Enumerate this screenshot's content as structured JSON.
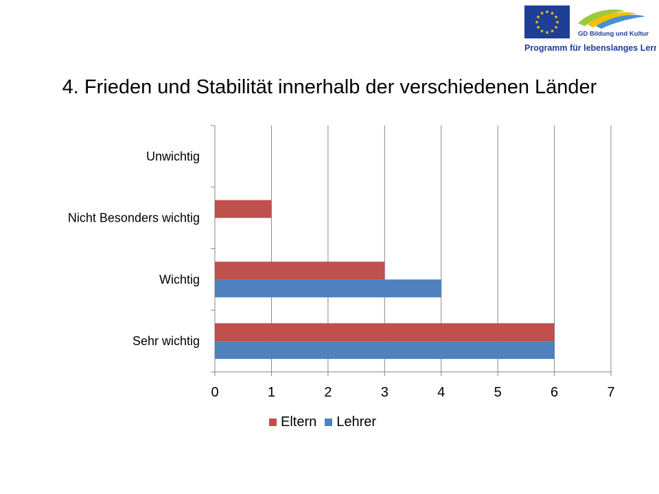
{
  "logo": {
    "eu_flag_color": "#1f3e96",
    "eu_star_color": "#ffdd00",
    "text_line1": "GD Bildung und Kultur",
    "text_line2": "Programm für lebenslanges Lernen",
    "text_color": "#1f3e96"
  },
  "slide": {
    "title": "4. Frieden und Stabilität innerhalb der verschiedenen Länder"
  },
  "chart_data": {
    "type": "bar",
    "orientation": "horizontal",
    "categories": [
      "Sehr wichtig",
      "Wichtig",
      "Nicht Besonders wichtig",
      "Unwichtig"
    ],
    "series": [
      {
        "name": "Eltern",
        "color": "#c0504d",
        "values": [
          6,
          3,
          1,
          0
        ]
      },
      {
        "name": "Lehrer",
        "color": "#4f81bd",
        "values": [
          6,
          4,
          0,
          0
        ]
      }
    ],
    "xlim": [
      0,
      7
    ],
    "xticks": [
      "0",
      "1",
      "2",
      "3",
      "4",
      "5",
      "6",
      "7"
    ],
    "grid": true,
    "legend": "bottom"
  }
}
